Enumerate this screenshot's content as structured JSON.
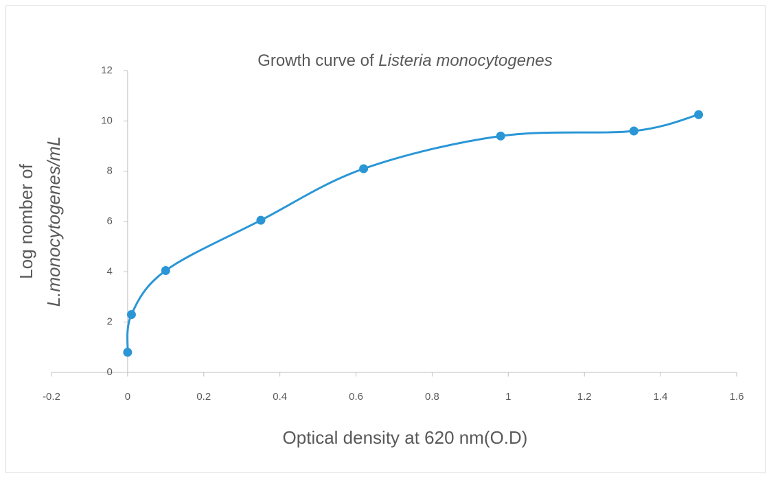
{
  "chart_data": {
    "type": "scatter",
    "title": [
      "Growth curve of",
      "Listeria monocytogenes"
    ],
    "x_label": "Optical density at 620 nm(O.D)",
    "y_label": [
      "Log nomber of",
      "L.monocytogenes/mL"
    ],
    "series": [
      {
        "color": "#2a96d6",
        "x": [
          0,
          0.01,
          0.1,
          0.35,
          0.62,
          0.98,
          1.33,
          1.5
        ],
        "values": [
          0.8,
          2.3,
          4.05,
          6.05,
          8.1,
          9.4,
          9.6,
          10.25
        ]
      }
    ],
    "xlim": [
      -0.2,
      1.6
    ],
    "xticks": [
      -0.2,
      0,
      0.2,
      0.4,
      0.6,
      0.8,
      1,
      1.2,
      1.4,
      1.6
    ],
    "ylim": [
      0,
      12
    ],
    "yticks": [
      0,
      2,
      4,
      6,
      8,
      10,
      12
    ],
    "smooth": true
  }
}
